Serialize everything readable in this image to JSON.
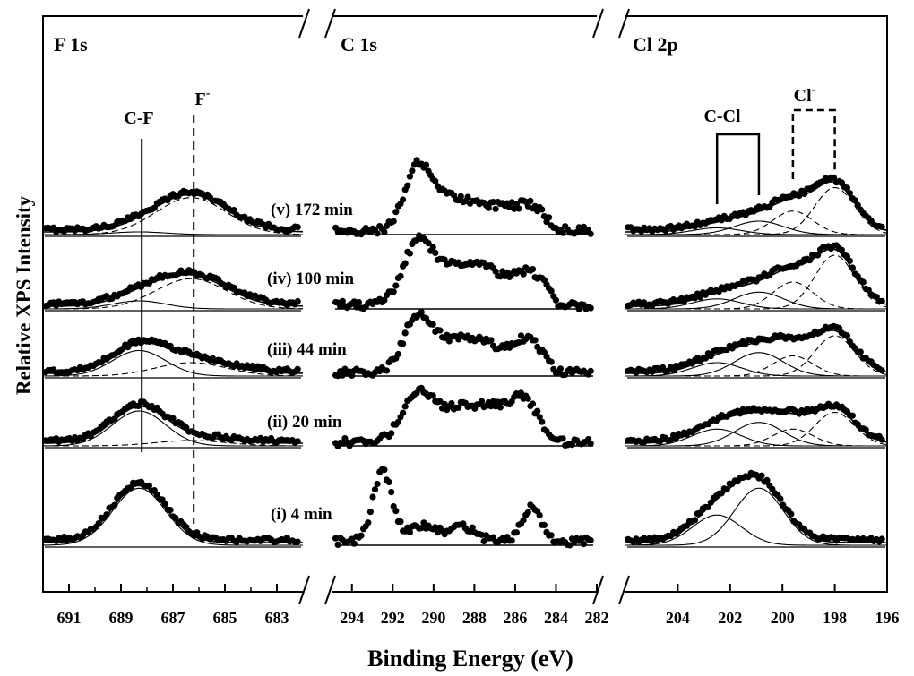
{
  "chart_data": {
    "type": "scatter",
    "ylabel": "Relative XPS Intensity",
    "xlabel": "Binding Energy (eV)",
    "x_reversed": true,
    "series_labels": [
      "(v) 172 min",
      "(iv) 100 min",
      "(iii) 44 min",
      "(ii) 20 min",
      "(i) 4 min"
    ],
    "panels": [
      {
        "name": "F 1s",
        "xlim": [
          692,
          682
        ],
        "ticks": [
          691,
          689,
          687,
          685,
          683
        ],
        "tick_labels": [
          "691",
          "689",
          "687",
          "685",
          "683"
        ],
        "annotations": [
          {
            "label": "C-F",
            "energy": 688.2,
            "line": "solid"
          },
          {
            "label": "F",
            "sup": "-",
            "energy": 686.2,
            "line": "dashed"
          }
        ],
        "components": [
          {
            "name": "C-F",
            "center": 688.3,
            "fwhm": 2.4,
            "line": "solid"
          },
          {
            "name": "F-",
            "center": 686.3,
            "fwhm": 3.2,
            "line": "dashed"
          }
        ],
        "spectra": [
          {
            "series": "(v) 172 min",
            "amplitudes": [
              0.04,
              0.55
            ]
          },
          {
            "series": "(iv) 100 min",
            "amplitudes": [
              0.12,
              0.45
            ]
          },
          {
            "series": "(iii) 44 min",
            "amplitudes": [
              0.38,
              0.2
            ]
          },
          {
            "series": "(ii) 20 min",
            "amplitudes": [
              0.52,
              0.08
            ]
          },
          {
            "series": "(i) 4 min",
            "amplitudes": [
              0.85,
              0.0
            ]
          }
        ]
      },
      {
        "name": "C 1s",
        "xlim": [
          295,
          282
        ],
        "ticks": [
          294,
          292,
          290,
          288,
          286,
          284,
          282
        ],
        "tick_labels": [
          "294",
          "292",
          "290",
          "288",
          "286",
          "284",
          "282"
        ],
        "annotations": [],
        "components": [],
        "spectra": [
          {
            "series": "(v) 172 min",
            "peaks": [
              [
                290.8,
                0.9,
                1.5
              ],
              [
                289.2,
                0.45,
                2.2
              ],
              [
                287.0,
                0.35,
                2.5
              ],
              [
                285.2,
                0.3,
                1.6
              ]
            ],
            "cut": 283.8
          },
          {
            "series": "(iv) 100 min",
            "peaks": [
              [
                290.8,
                0.85,
                1.7
              ],
              [
                289.0,
                0.5,
                2.5
              ],
              [
                287.2,
                0.4,
                2.5
              ],
              [
                285.2,
                0.42,
                1.8
              ]
            ],
            "cut": 284.2
          },
          {
            "series": "(iii) 44 min",
            "peaks": [
              [
                290.8,
                0.75,
                1.6
              ],
              [
                289.2,
                0.4,
                2.5
              ],
              [
                287.3,
                0.35,
                2.5
              ],
              [
                285.3,
                0.45,
                1.6
              ]
            ],
            "cut": 284.2
          },
          {
            "series": "(ii) 20 min",
            "peaks": [
              [
                290.8,
                0.6,
                1.8
              ],
              [
                289.0,
                0.42,
                2.8
              ],
              [
                287.0,
                0.4,
                2.5
              ],
              [
                285.5,
                0.5,
                1.6
              ]
            ],
            "cut": 284.6
          },
          {
            "series": "(i) 4 min",
            "peaks": [
              [
                292.5,
                1.05,
                1.1
              ],
              [
                290.5,
                0.22,
                1.8
              ],
              [
                288.5,
                0.22,
                1.3
              ],
              [
                285.2,
                0.5,
                1.1
              ]
            ],
            "cut": 284.2
          }
        ]
      },
      {
        "name": "Cl 2p",
        "xlim": [
          206,
          196
        ],
        "ticks": [
          204,
          202,
          200,
          198,
          196
        ],
        "tick_labels": [
          "204",
          "202",
          "200",
          "198",
          "196"
        ],
        "annotations": [
          {
            "label": "C-Cl",
            "range": [
              202.5,
              200.9
            ],
            "line": "solid"
          },
          {
            "label": "Cl",
            "sup": "-",
            "range": [
              199.6,
              198.0
            ],
            "line": "dashed"
          }
        ],
        "components": [
          {
            "name": "C-Cl 2p1/2",
            "center": 202.5,
            "fwhm": 2.2,
            "line": "solid"
          },
          {
            "name": "C-Cl 2p3/2",
            "center": 200.9,
            "fwhm": 2.2,
            "line": "solid"
          },
          {
            "name": "Cl- 2p1/2",
            "center": 199.6,
            "fwhm": 1.8,
            "line": "dashed"
          },
          {
            "name": "Cl- 2p3/2",
            "center": 198.0,
            "fwhm": 1.8,
            "line": "dashed"
          }
        ],
        "spectra": [
          {
            "series": "(v) 172 min",
            "amplitudes": [
              0.1,
              0.2,
              0.35,
              0.7
            ]
          },
          {
            "series": "(iv) 100 min",
            "amplitudes": [
              0.15,
              0.25,
              0.4,
              0.8
            ]
          },
          {
            "series": "(iii) 44 min",
            "amplitudes": [
              0.2,
              0.35,
              0.3,
              0.6
            ]
          },
          {
            "series": "(ii) 20 min",
            "amplitudes": [
              0.25,
              0.35,
              0.25,
              0.5
            ]
          },
          {
            "series": "(i) 4 min",
            "amplitudes": [
              0.45,
              0.85,
              0.0,
              0.0
            ]
          }
        ]
      }
    ]
  }
}
